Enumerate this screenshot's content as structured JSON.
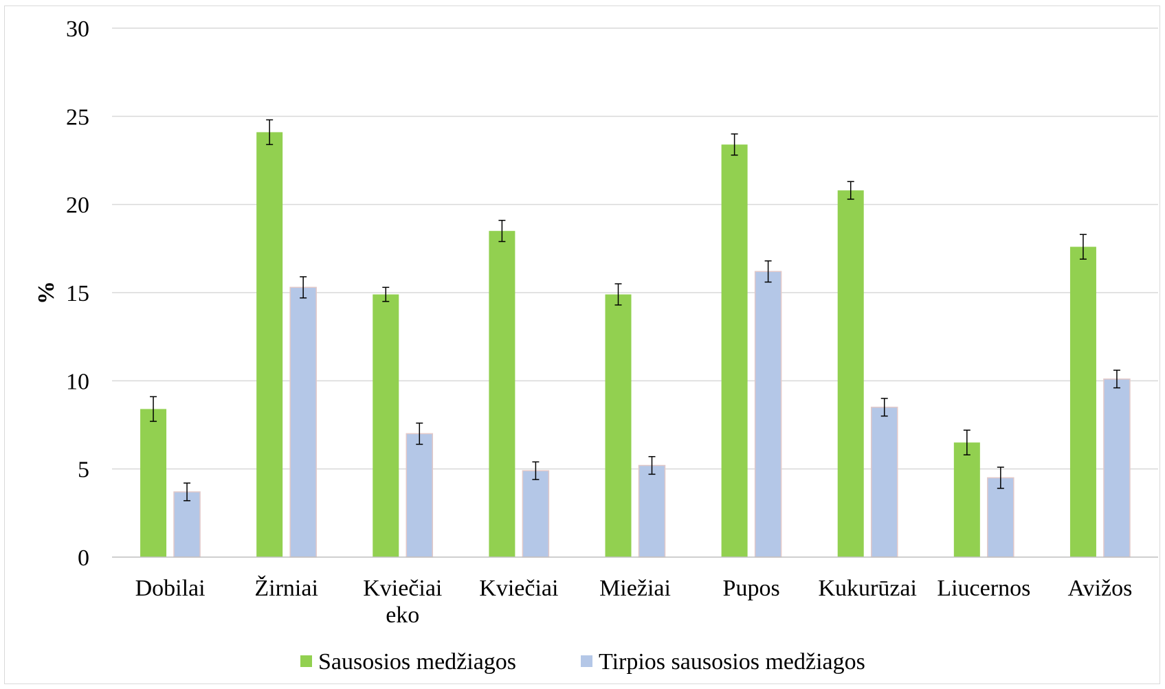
{
  "chart_data": {
    "type": "bar",
    "title": "",
    "xlabel": "",
    "ylabel": "%",
    "ylim": [
      0,
      30
    ],
    "yticks": [
      "0",
      "5",
      "10",
      "15",
      "20",
      "25",
      "30"
    ],
    "categories": [
      [
        "Dobilai"
      ],
      [
        "Žirniai"
      ],
      [
        "Kviečiai",
        "eko"
      ],
      [
        "Kviečiai"
      ],
      [
        "Miežiai"
      ],
      [
        "Pupos"
      ],
      [
        "Kukurūzai"
      ],
      [
        "Liucernos"
      ],
      [
        "Avižos"
      ]
    ],
    "series": [
      {
        "name": "Sausosios medžiagos",
        "color": "#92d050",
        "values": [
          8.4,
          24.1,
          14.9,
          18.5,
          14.9,
          23.4,
          20.8,
          6.5,
          17.6
        ],
        "errors": [
          0.7,
          0.7,
          0.4,
          0.6,
          0.6,
          0.6,
          0.5,
          0.7,
          0.7
        ]
      },
      {
        "name": "Tirpios sausosios medžiagos",
        "color": "#b4c7e7",
        "values": [
          3.7,
          15.3,
          7.0,
          4.9,
          5.2,
          16.2,
          8.5,
          4.5,
          10.1
        ],
        "errors": [
          0.5,
          0.6,
          0.6,
          0.5,
          0.5,
          0.6,
          0.5,
          0.6,
          0.5
        ]
      }
    ],
    "grid": true,
    "legend": "bottom-center"
  }
}
